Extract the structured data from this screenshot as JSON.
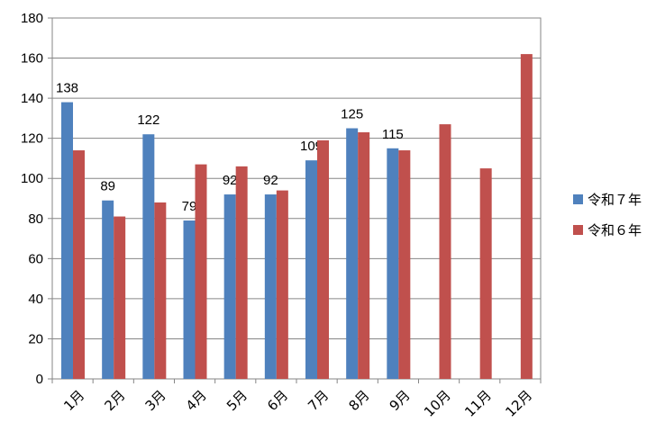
{
  "chart_data": {
    "type": "bar",
    "categories": [
      "1月",
      "2月",
      "3月",
      "4月",
      "5月",
      "6月",
      "7月",
      "8月",
      "9月",
      "10月",
      "11月",
      "12月"
    ],
    "series": [
      {
        "name": "令和７年",
        "color": "#4f81bd",
        "values": [
          138,
          89,
          122,
          79,
          92,
          92,
          109,
          125,
          115,
          null,
          null,
          null
        ],
        "data_labels": [
          "138",
          "89",
          "122",
          "79",
          "92",
          "92",
          "109",
          "125",
          "115",
          null,
          null,
          null
        ]
      },
      {
        "name": "令和６年",
        "color": "#c0504d",
        "values": [
          114,
          81,
          88,
          107,
          106,
          94,
          119,
          123,
          114,
          127,
          105,
          162
        ],
        "data_labels": null
      }
    ],
    "ylim": [
      0,
      180
    ],
    "yticks": [
      0,
      20,
      40,
      60,
      80,
      100,
      120,
      140,
      160,
      180
    ],
    "grid": true,
    "legend_position": "right",
    "title": "",
    "xlabel": "",
    "ylabel": ""
  }
}
